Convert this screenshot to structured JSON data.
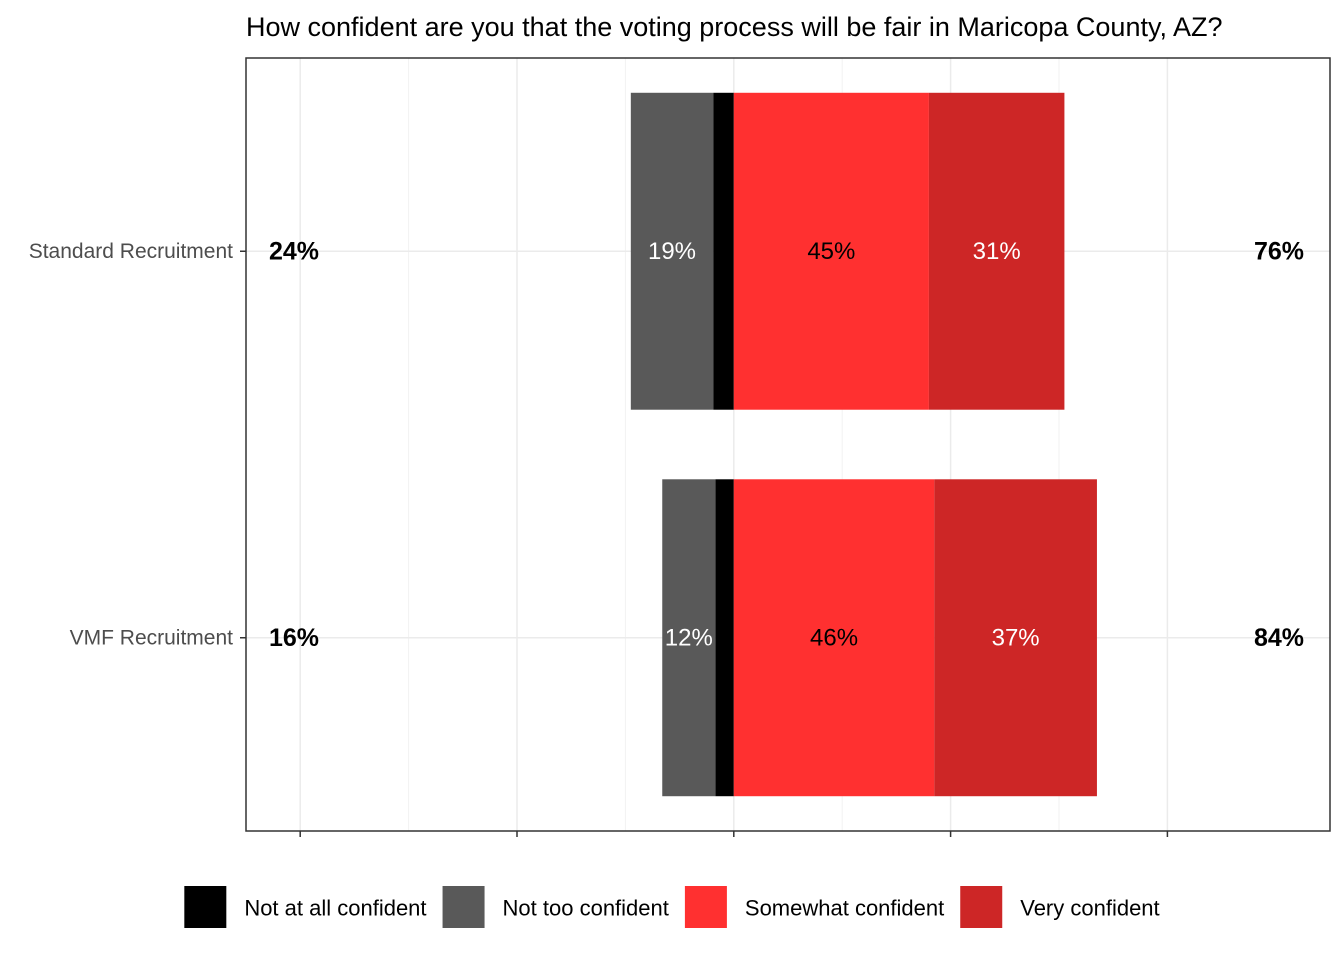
{
  "chart_data": {
    "type": "bar",
    "orientation": "horizontal",
    "stacked": "diverging",
    "title": "How confident are you that the voting process will be fair in Maricopa County, AZ?",
    "xlabel": "",
    "ylabel": "",
    "xlim": [
      -45,
      55
    ],
    "x_tick_values": [
      -40,
      -20,
      0,
      20,
      40
    ],
    "grid": true,
    "legend_position": "bottom",
    "categories": [
      "Standard Recruitment",
      "VMF Recruitment"
    ],
    "series": [
      {
        "name": "Not at all confident",
        "color": "#000000",
        "text_color": "#ffffff",
        "values": [
          -1.9,
          -1.7
        ],
        "labels": [
          "",
          ""
        ]
      },
      {
        "name": "Not too confident",
        "color": "#595959",
        "text_color": "#ffffff",
        "values": [
          -7.6,
          -4.9
        ],
        "labels": [
          "19%",
          "12%"
        ]
      },
      {
        "name": "Somewhat confident",
        "color": "#ff3030",
        "text_color": "#000000",
        "values": [
          18.0,
          18.5
        ],
        "labels": [
          "45%",
          "46%"
        ]
      },
      {
        "name": "Very confident",
        "color": "#cd2626",
        "text_color": "#ffffff",
        "values": [
          12.5,
          15.0
        ],
        "labels": [
          "31%",
          "37%"
        ]
      }
    ],
    "totals_left": [
      "24%",
      "16%"
    ],
    "totals_right": [
      "76%",
      "84%"
    ]
  }
}
